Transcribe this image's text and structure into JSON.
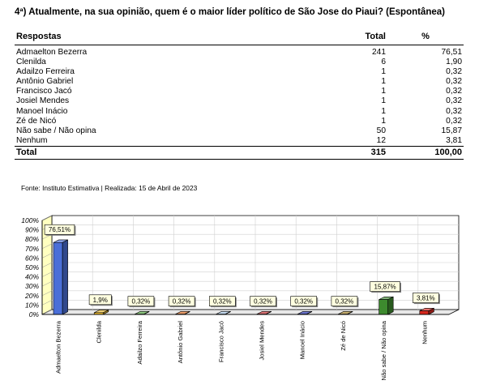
{
  "question": "4ª) Atualmente, na sua opinião, quem é o maior líder político de São Jose do Piaui? (Espontânea)",
  "table": {
    "headers": [
      "Respostas",
      "Total",
      "%"
    ],
    "rows": [
      {
        "label": "Admaelton Bezerra",
        "total": "241",
        "pct": "76,51"
      },
      {
        "label": "Clenilda",
        "total": "6",
        "pct": "1,90"
      },
      {
        "label": "Adailzo Ferreira",
        "total": "1",
        "pct": "0,32"
      },
      {
        "label": "Antônio Gabriel",
        "total": "1",
        "pct": "0,32"
      },
      {
        "label": "Francisco Jacó",
        "total": "1",
        "pct": "0,32"
      },
      {
        "label": "Josiel Mendes",
        "total": "1",
        "pct": "0,32"
      },
      {
        "label": "Manoel Inácio",
        "total": "1",
        "pct": "0,32"
      },
      {
        "label": "Zé de Nicó",
        "total": "1",
        "pct": "0,32"
      },
      {
        "label": "Não sabe / Não opina",
        "total": "50",
        "pct": "15,87"
      },
      {
        "label": "Nenhum",
        "total": "12",
        "pct": "3,81"
      }
    ],
    "total_row": {
      "label": "Total",
      "total": "315",
      "pct": "100,00"
    }
  },
  "source": "Fonte: Instituto Estimativa | Realizada: 15 de Abril de 2023",
  "chart_data": {
    "type": "bar",
    "categories": [
      "Admaelton Bezerra",
      "Clenilda",
      "Adailzo Ferreira",
      "Antônio Gabriel",
      "Francisco Jacó",
      "Josiel Mendes",
      "Manoel Inácio",
      "Zé de Nicó",
      "Não sabe / Não opina",
      "Nenhum"
    ],
    "values": [
      76.51,
      1.9,
      0.32,
      0.32,
      0.32,
      0.32,
      0.32,
      0.32,
      15.87,
      3.81
    ],
    "data_labels": [
      "76,51%",
      "1,9%",
      "0,32%",
      "0,32%",
      "0,32%",
      "0,32%",
      "0,32%",
      "0,32%",
      "15,87%",
      "3,81%"
    ],
    "colors": [
      "#4a6fd8",
      "#e8b830",
      "#4fa83a",
      "#e06a1c",
      "#a8c8e8",
      "#c8282a",
      "#1d2bb4",
      "#a88424",
      "#3d8a2e",
      "#d8281e"
    ],
    "yticks": [
      "100%",
      "90%",
      "80%",
      "70%",
      "60%",
      "50%",
      "40%",
      "30%",
      "20%",
      "10%",
      "0%"
    ],
    "ylim": [
      0,
      100
    ],
    "grid": true,
    "title": "",
    "xlabel": "",
    "ylabel": ""
  }
}
